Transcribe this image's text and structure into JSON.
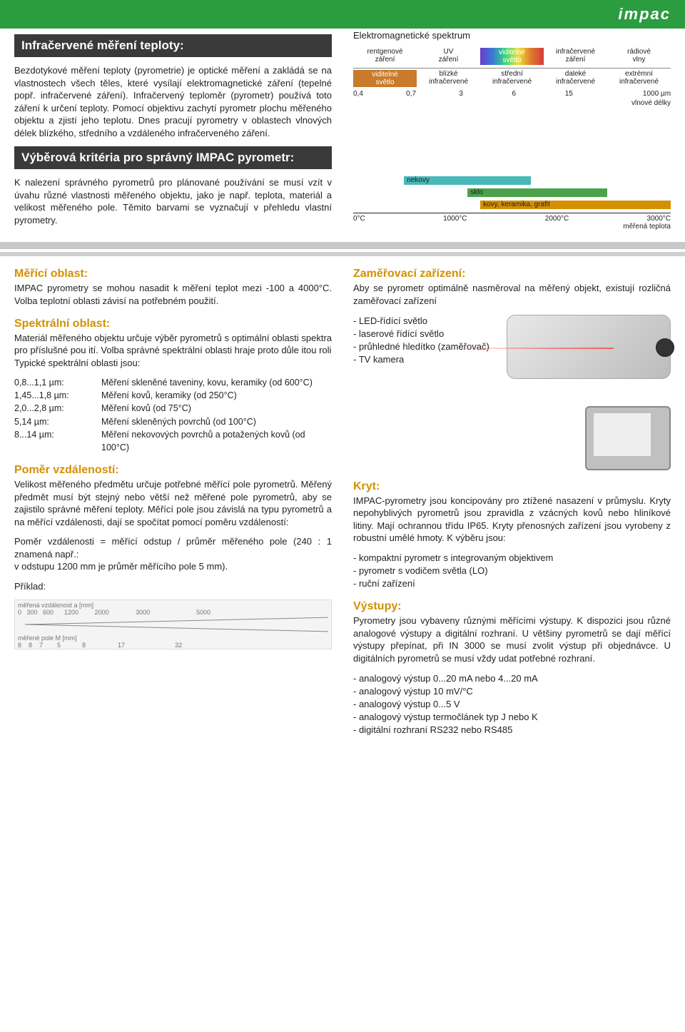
{
  "header": {
    "logo": "impac"
  },
  "intro": {
    "title": "Infračervené měření teploty:",
    "body": "Bezdotykové měření teploty (pyrometrie) je optické měření a zakládá se na vlastnostech všech těles, které vysílají elektromagnetické záření (tepelné popř. infračervené záření). Infračervený teploměr (pyrometr) používá toto záření k určení teploty. Pomocí objektivu zachytí pyrometr plochu měřeného objektu a zjistí jeho teplotu. Dnes pracují pyrometry v oblastech vlnových délek blízkého, středního a vzdáleného infračerveného záření."
  },
  "selection_bar": "Výběrová kritéria pro správný IMPAC pyrometr:",
  "criteria_body": "K nalezení správného pyrometrů pro plánované používání se musí vzít v úvahu různé vlastnosti měřeného objektu, jako je např. teplota, materiál a velikost měřeného pole. Těmito barvami se vyznačují v přehledu vlastní pyrometry.",
  "spectrum": {
    "title": "Elektromagnetické spektrum",
    "top": [
      "rentgenové\nzáření",
      "UV\nzáření",
      "viditelné\nsvětlo",
      "infračervené\nzáření",
      "rádiové\nvlny"
    ],
    "bot": [
      "viditelné\nsvětlo",
      "blízké\ninfračervené",
      "střední\ninfračervené",
      "daleké\ninfračervené",
      "extrémní\ninfračervené"
    ],
    "scale": [
      "0,4",
      "0,7",
      "3",
      "6",
      "15",
      "1000 µm"
    ],
    "wave_label": "vlnové délky"
  },
  "materials": {
    "bars": [
      {
        "label": "nekovy",
        "left_pct": 16,
        "width_pct": 40,
        "color": "#48b8b8"
      },
      {
        "label": "sklo",
        "left_pct": 36,
        "width_pct": 44,
        "color": "#4aa34a"
      },
      {
        "label": "kovy, keramika, grafit",
        "left_pct": 40,
        "width_pct": 60,
        "color": "#d49000"
      }
    ],
    "axis": [
      "0°C",
      "1000°C",
      "2000°C",
      "3000°C"
    ],
    "axis_label": "měřená teplota"
  },
  "measure": {
    "head": "Měřící oblast:",
    "body": "IMPAC pyrometry se mohou nasadit k měření teplot mezi -100 a 4000°C. Volba teplotní oblasti závisí na potřebném použití."
  },
  "spectral": {
    "head": "Spektrální oblast:",
    "body": "Materiál měřeného objektu určuje výběr pyrometrů s optimální oblasti spektra pro příslušné pou ití. Volba správné spektrální oblasti hraje proto důle itou roli\nTypické spektrální oblasti jsou:",
    "rows": [
      {
        "range": "0,8...1,1 µm:",
        "desc": "Měření skleněné taveniny, kovu, keramiky (od 600°C)"
      },
      {
        "range": "1,45...1,8 µm:",
        "desc": "Měření kovů, keramiky (od 250°C)"
      },
      {
        "range": "2,0...2,8 µm:",
        "desc": "Měření kovů (od 75°C)"
      },
      {
        "range": "5,14 µm:",
        "desc": "Měření skleněných povrchů (od 100°C)"
      },
      {
        "range": "8...14 µm:",
        "desc": "Měření nekovových povrchů a potažených kovů (od 100°C)"
      }
    ]
  },
  "ratio": {
    "head": "Poměr vzdáleností:",
    "body1": "Velikost měřeného předmětu určuje potřebné měřící pole pyrometrů. Měřený předmět musí být stejný nebo větší než měřené pole pyrometrů, aby se zajistilo správné měření teploty. Měřící pole jsou závislá na typu pyrometrů a na měřící vzdálenosti, dají se spočítat pomocí poměru vzdáleností:",
    "body2": "Poměr vzdálenosti = měřící odstup / průměr měřeného pole (240 : 1 znamená např.:\nv odstupu 1200 mm je průměr měřícího pole 5 mm).",
    "example": "Příklad:",
    "diag_top_lbl": "měřená vzdálenost a [mm]",
    "diag_top_vals": "0   300   600      1200         2000               3000                          5000",
    "diag_bot_lbl": "měřené pole M [mm]",
    "diag_bot_vals": "8    8    7        5            8                  17                            32"
  },
  "aim": {
    "head": "Zaměřovací zařízení:",
    "body": "Aby se pyrometr optimálně nasměroval na měřený objekt, existují rozličná zaměřovací zařízení",
    "list": [
      "LED-řídící světlo",
      "laserové řídící světlo",
      "průhledné hledítko (zaměřovač)",
      "TV kamera"
    ]
  },
  "cover": {
    "head": "Kryt:",
    "body": "IMPAC-pyrometry jsou koncipovány pro ztížené nasazení v průmyslu. Kryty nepohyblivých pyrometrů jsou zpravidla z vzácných kovů nebo hliníkové litiny. Mají ochrannou třídu IP65. Kryty přenosných zařízení jsou vyrobeny z robustní umělé hmoty. K výběru jsou:",
    "list": [
      "kompaktní pyrometr s integrovaným objektivem",
      "pyrometr s vodičem světla (LO)",
      "ruční zařízení"
    ]
  },
  "outputs": {
    "head": "Výstupy:",
    "body": "Pyrometry jsou vybaveny různými měřícími výstupy. K dispozici jsou různé analogové výstupy a digitální rozhraní. U většiny pyrometrů se dají měřící výstupy přepínat, při IN 3000 se musí zvolit výstup při objednávce. U digitálních pyrometrů se musí vždy udat potřebné rozhraní.",
    "list": [
      "analogový výstup 0...20 mA nebo 4...20 mA",
      "analogový výstup 10 mV/°C",
      "analogový výstup 0...5 V",
      "analogový výstup termočlánek typ J nebo K",
      "digitální rozhraní RS232 nebo RS485"
    ]
  }
}
